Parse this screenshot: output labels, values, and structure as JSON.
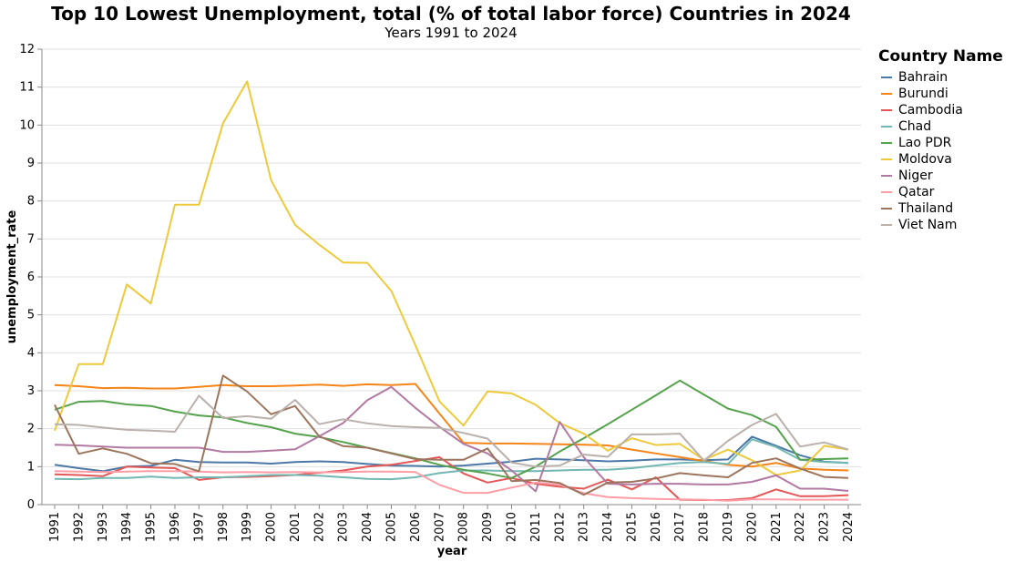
{
  "chart_data": {
    "type": "line",
    "title": "Top 10 Lowest Unemployment, total (% of total labor force) Countries in 2024",
    "subtitle": "Years 1991 to 2024",
    "xlabel": "year",
    "ylabel": "unemployment_rate",
    "ylim": [
      0,
      12
    ],
    "yticks": [
      0,
      1,
      2,
      3,
      4,
      5,
      6,
      7,
      8,
      9,
      10,
      11,
      12
    ],
    "grid": true,
    "legend_title": "Country Name",
    "legend_position": "right",
    "x": [
      "1991",
      "1992",
      "1993",
      "1994",
      "1995",
      "1996",
      "1997",
      "1998",
      "1999",
      "2000",
      "2001",
      "2002",
      "2003",
      "2004",
      "2005",
      "2006",
      "2007",
      "2008",
      "2009",
      "2010",
      "2011",
      "2012",
      "2013",
      "2014",
      "2015",
      "2016",
      "2017",
      "2018",
      "2019",
      "2020",
      "2021",
      "2022",
      "2023",
      "2024"
    ],
    "series": [
      {
        "name": "Bahrain",
        "color": "#4c78a8",
        "values": [
          1.05,
          0.96,
          0.88,
          1.0,
          1.02,
          1.18,
          1.12,
          1.11,
          1.11,
          1.08,
          1.12,
          1.14,
          1.12,
          1.07,
          1.03,
          1.02,
          1.0,
          1.03,
          1.08,
          1.13,
          1.21,
          1.19,
          1.17,
          1.14,
          1.16,
          1.19,
          1.19,
          1.17,
          1.19,
          1.79,
          1.55,
          1.3,
          1.13,
          1.1
        ]
      },
      {
        "name": "Burundi",
        "color": "#f58518",
        "values": [
          3.15,
          3.12,
          3.07,
          3.08,
          3.06,
          3.06,
          3.1,
          3.15,
          3.12,
          3.12,
          3.14,
          3.16,
          3.13,
          3.17,
          3.15,
          3.18,
          2.4,
          1.63,
          1.61,
          1.61,
          1.6,
          1.59,
          1.58,
          1.56,
          1.45,
          1.35,
          1.25,
          1.15,
          1.05,
          1.0,
          1.1,
          0.95,
          0.92,
          0.9
        ]
      },
      {
        "name": "Cambodia",
        "color": "#e45756",
        "values": [
          0.8,
          0.78,
          0.75,
          1.0,
          0.98,
          0.96,
          0.65,
          0.72,
          0.73,
          0.75,
          0.78,
          0.84,
          0.9,
          1.0,
          1.05,
          1.15,
          1.25,
          0.82,
          0.58,
          0.7,
          0.55,
          0.47,
          0.42,
          0.66,
          0.4,
          0.72,
          0.13,
          0.12,
          0.12,
          0.17,
          0.4,
          0.22,
          0.22,
          0.25
        ]
      },
      {
        "name": "Chad",
        "color": "#72b7b2",
        "values": [
          0.68,
          0.67,
          0.7,
          0.7,
          0.74,
          0.7,
          0.72,
          0.72,
          0.75,
          0.78,
          0.78,
          0.76,
          0.72,
          0.68,
          0.67,
          0.72,
          0.83,
          0.9,
          0.9,
          0.88,
          0.88,
          0.9,
          0.92,
          0.92,
          0.96,
          1.03,
          1.1,
          1.12,
          1.07,
          1.72,
          1.52,
          1.18,
          1.12,
          1.1
        ]
      },
      {
        "name": "Lao PDR",
        "color": "#54a24b",
        "values": [
          2.5,
          2.71,
          2.73,
          2.64,
          2.6,
          2.45,
          2.35,
          2.3,
          2.15,
          2.04,
          1.87,
          1.78,
          1.65,
          1.5,
          1.36,
          1.22,
          1.05,
          0.92,
          0.82,
          0.7,
          1.0,
          1.4,
          1.75,
          2.12,
          2.5,
          2.88,
          3.27,
          2.9,
          2.53,
          2.36,
          2.05,
          1.18,
          1.2,
          1.22
        ]
      },
      {
        "name": "Moldova",
        "color": "#eeca3b",
        "values": [
          1.95,
          3.7,
          3.7,
          5.8,
          5.3,
          7.9,
          7.9,
          10.05,
          11.15,
          8.55,
          7.37,
          6.85,
          6.38,
          6.37,
          5.63,
          4.2,
          2.72,
          2.08,
          2.98,
          2.93,
          2.63,
          2.15,
          1.87,
          1.42,
          1.75,
          1.57,
          1.6,
          1.18,
          1.45,
          1.17,
          0.78,
          0.9,
          1.55,
          1.45
        ]
      },
      {
        "name": "Niger",
        "color": "#b279a2",
        "values": [
          1.58,
          1.56,
          1.53,
          1.5,
          1.5,
          1.5,
          1.5,
          1.39,
          1.39,
          1.42,
          1.46,
          1.8,
          2.15,
          2.75,
          3.1,
          2.55,
          2.05,
          1.6,
          1.35,
          0.9,
          0.35,
          2.18,
          1.25,
          0.55,
          0.53,
          0.55,
          0.55,
          0.53,
          0.53,
          0.6,
          0.77,
          0.42,
          0.42,
          0.36
        ]
      },
      {
        "name": "Qatar",
        "color": "#ff9da6",
        "values": [
          0.88,
          0.87,
          0.86,
          0.87,
          0.88,
          0.88,
          0.87,
          0.85,
          0.86,
          0.85,
          0.86,
          0.85,
          0.86,
          0.87,
          0.87,
          0.86,
          0.52,
          0.31,
          0.31,
          0.45,
          0.58,
          0.52,
          0.3,
          0.2,
          0.17,
          0.15,
          0.14,
          0.13,
          0.1,
          0.14,
          0.14,
          0.13,
          0.13,
          0.13
        ]
      },
      {
        "name": "Thailand",
        "color": "#9d755d",
        "values": [
          2.63,
          1.34,
          1.48,
          1.34,
          1.09,
          1.07,
          0.88,
          3.4,
          2.98,
          2.38,
          2.6,
          1.8,
          1.54,
          1.5,
          1.35,
          1.2,
          1.18,
          1.18,
          1.48,
          0.62,
          0.65,
          0.57,
          0.26,
          0.58,
          0.6,
          0.69,
          0.83,
          0.77,
          0.72,
          1.1,
          1.22,
          0.95,
          0.73,
          0.7
        ]
      },
      {
        "name": "Viet Nam",
        "color": "#bab0ac",
        "values": [
          2.12,
          2.1,
          2.03,
          1.97,
          1.95,
          1.92,
          2.87,
          2.28,
          2.33,
          2.26,
          2.76,
          2.12,
          2.25,
          2.14,
          2.07,
          2.04,
          2.02,
          1.89,
          1.74,
          1.11,
          1.0,
          1.03,
          1.32,
          1.26,
          1.85,
          1.85,
          1.87,
          1.16,
          1.68,
          2.1,
          2.39,
          1.53,
          1.64,
          1.45
        ]
      }
    ]
  }
}
